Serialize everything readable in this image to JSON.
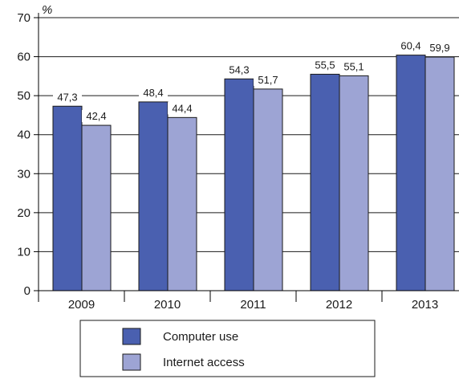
{
  "chart_data": {
    "type": "bar",
    "unit": "%",
    "categories": [
      "2009",
      "2010",
      "2011",
      "2012",
      "2013"
    ],
    "series": [
      {
        "name": "Computer use",
        "values": [
          47.3,
          48.4,
          54.3,
          55.5,
          60.4
        ],
        "labels": [
          "47,3",
          "48,4",
          "54,3",
          "55,5",
          "60,4"
        ],
        "color": "#4a60b0"
      },
      {
        "name": "Internet access",
        "values": [
          42.4,
          44.4,
          51.7,
          55.1,
          59.9
        ],
        "labels": [
          "42,4",
          "44,4",
          "51,7",
          "55,1",
          "59,9"
        ],
        "color": "#9da4d4"
      }
    ],
    "ylim": [
      0,
      70
    ],
    "yticks": [
      0,
      10,
      20,
      30,
      40,
      50,
      60,
      70
    ],
    "grid": true,
    "legend": "bottom"
  }
}
